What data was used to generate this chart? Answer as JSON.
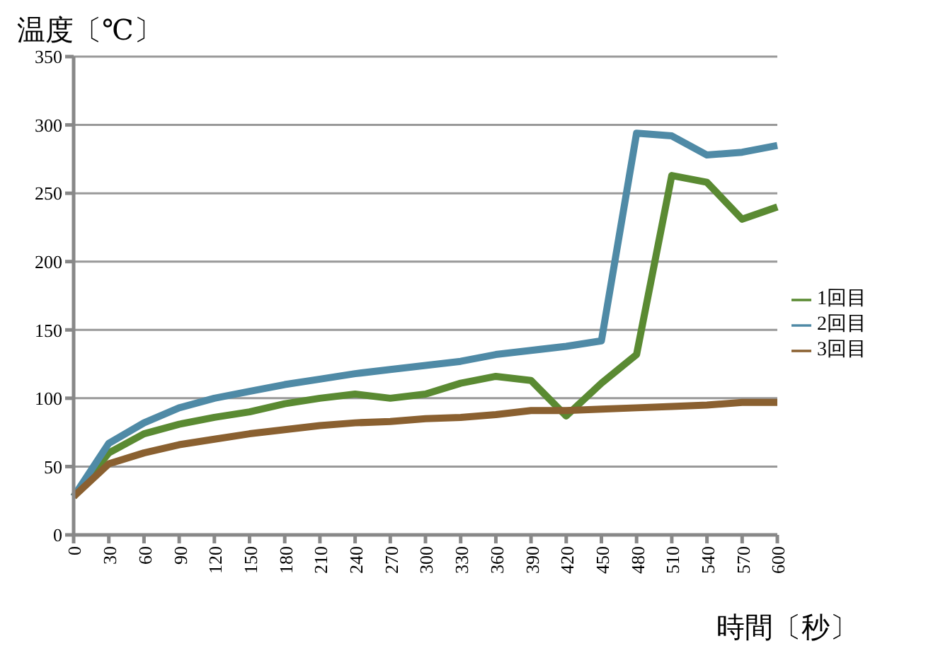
{
  "chart_data": {
    "type": "line",
    "ylabel": "温度〔℃〕",
    "xlabel": "時間〔秒〕",
    "categories": [
      "0",
      "30",
      "60",
      "90",
      "120",
      "150",
      "180",
      "210",
      "240",
      "270",
      "300",
      "330",
      "360",
      "390",
      "420",
      "450",
      "480",
      "510",
      "540",
      "570",
      "600"
    ],
    "series": [
      {
        "name": "1回目",
        "color": "#5a8a32",
        "values": [
          28,
          60,
          74,
          81,
          86,
          90,
          96,
          100,
          103,
          100,
          103,
          111,
          116,
          113,
          87,
          111,
          132,
          263,
          258,
          231,
          240
        ]
      },
      {
        "name": "2回目",
        "color": "#4f8aa6",
        "values": [
          28,
          67,
          82,
          93,
          100,
          105,
          110,
          114,
          118,
          121,
          124,
          127,
          132,
          135,
          138,
          142,
          294,
          292,
          278,
          280,
          285
        ]
      },
      {
        "name": "3回目",
        "color": "#8a6030",
        "values": [
          28,
          52,
          60,
          66,
          70,
          74,
          77,
          80,
          82,
          83,
          85,
          86,
          88,
          91,
          91,
          92,
          93,
          94,
          95,
          97,
          97
        ]
      }
    ],
    "ylim": [
      0,
      350
    ],
    "yticks": [
      0,
      50,
      100,
      150,
      200,
      250,
      300,
      350
    ],
    "grid": "y",
    "legend": "right",
    "marker": "none",
    "line_style": "solid"
  }
}
